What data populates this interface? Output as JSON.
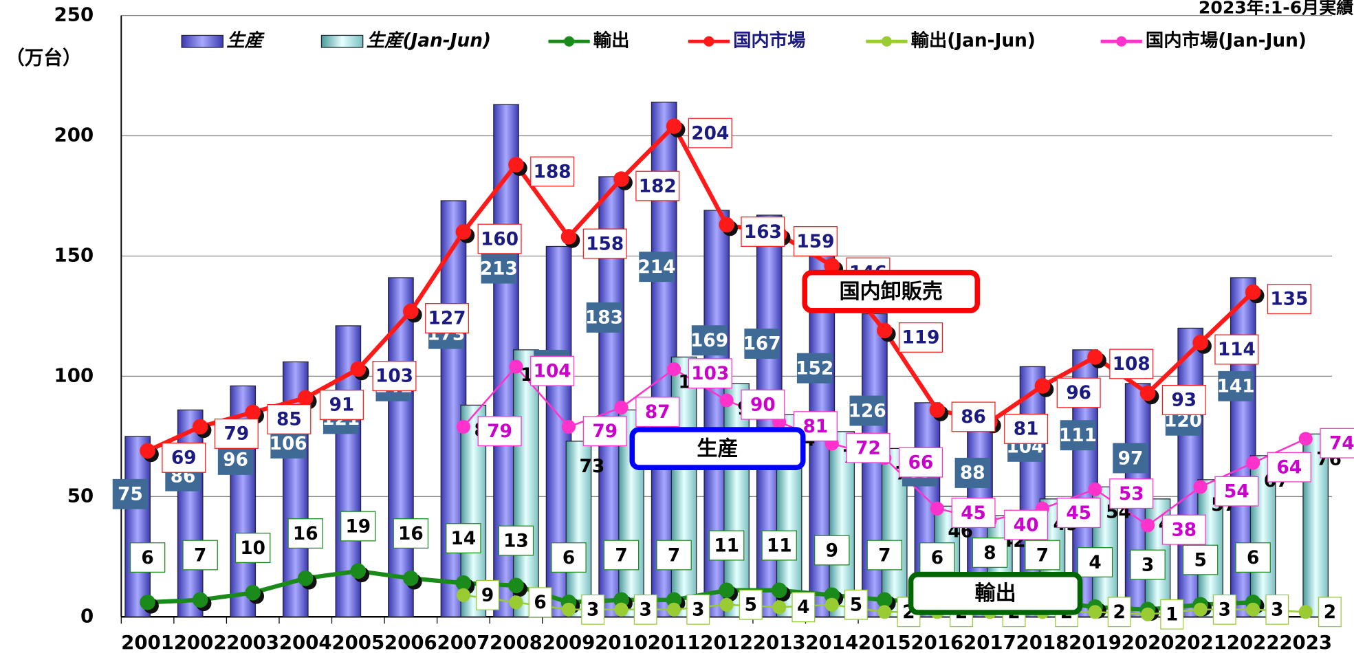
{
  "chart_data": {
    "type": "bar",
    "title": "2023年:1-6月実績",
    "y_label": "（万台）",
    "annotations": [
      "国内卸販売",
      "生産",
      "輸出"
    ],
    "categories": [
      "2001",
      "2002",
      "2003",
      "2004",
      "2005",
      "2006",
      "2007",
      "2008",
      "2009",
      "2010",
      "2011",
      "2012",
      "2013",
      "2014",
      "2015",
      "2016",
      "2017",
      "2018",
      "2019",
      "2020",
      "2021",
      "2022",
      "2023"
    ],
    "ylim": [
      0,
      250
    ],
    "yticks": [
      0,
      50,
      100,
      150,
      200,
      250
    ],
    "grid": true,
    "series": [
      {
        "name": "生産",
        "type": "bar",
        "color": "#8a8af0",
        "values": [
          75,
          86,
          96,
          106,
          121,
          141,
          173,
          213,
          154,
          183,
          214,
          169,
          167,
          152,
          126,
          89,
          88,
          104,
          111,
          97,
          120,
          141,
          null
        ]
      },
      {
        "name": "生産(Jan-Jun)",
        "type": "bar",
        "color": "#a8e6e6",
        "values": [
          null,
          null,
          null,
          null,
          null,
          null,
          88,
          111,
          73,
          86,
          108,
          97,
          84,
          77,
          70,
          46,
          42,
          49,
          54,
          49,
          57,
          67,
          76
        ]
      },
      {
        "name": "輸出",
        "type": "line",
        "color": "#1a8a1a",
        "values": [
          6,
          7,
          10,
          16,
          19,
          16,
          14,
          13,
          6,
          7,
          7,
          11,
          11,
          9,
          7,
          6,
          8,
          7,
          4,
          3,
          5,
          6,
          null
        ]
      },
      {
        "name": "国内市場",
        "type": "line",
        "color": "#ff1a1a",
        "values": [
          69,
          79,
          85,
          91,
          103,
          127,
          160,
          188,
          158,
          182,
          204,
          163,
          159,
          146,
          119,
          86,
          81,
          96,
          108,
          93,
          114,
          135,
          null
        ]
      },
      {
        "name": "輸出(Jan-Jun)",
        "type": "line",
        "color": "#99cc33",
        "values": [
          null,
          null,
          null,
          null,
          null,
          null,
          9,
          6,
          3,
          3,
          3,
          5,
          4,
          5,
          2,
          2,
          2,
          2,
          2,
          1,
          3,
          3,
          2
        ]
      },
      {
        "name": "国内市場(Jan-Jun)",
        "type": "line",
        "color": "#ff33cc",
        "values": [
          null,
          null,
          null,
          null,
          null,
          null,
          79,
          104,
          79,
          87,
          103,
          90,
          81,
          72,
          66,
          45,
          40,
          45,
          53,
          38,
          54,
          64,
          74
        ]
      }
    ]
  }
}
